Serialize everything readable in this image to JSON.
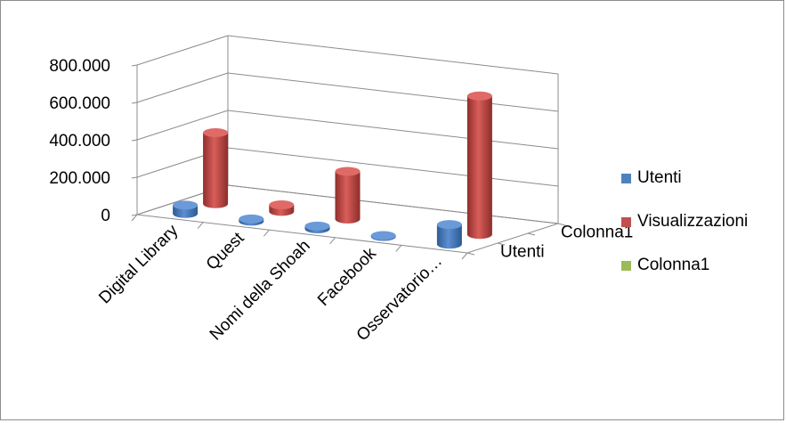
{
  "chart_data": {
    "type": "bar",
    "variant": "3d-cylinder",
    "categories": [
      "Digital Library",
      "Quest",
      "Nomi della Shoah",
      "Facebook",
      "Osservatorio…"
    ],
    "series": [
      {
        "name": "Utenti",
        "values": [
          45000,
          12000,
          15000,
          5000,
          105000
        ],
        "color": "#4f81bd"
      },
      {
        "name": "Visualizzazioni",
        "values": [
          380000,
          35000,
          255000,
          0,
          740000
        ],
        "color": "#c0504d"
      },
      {
        "name": "Colonna1",
        "values": [
          0,
          0,
          0,
          0,
          0
        ],
        "color": "#9bbb59"
      }
    ],
    "depth_labels": [
      "Utenti",
      "Colonna1"
    ],
    "y_ticks": [
      "0",
      "200.000",
      "400.000",
      "600.000",
      "800.000"
    ],
    "ylim": [
      0,
      800000
    ],
    "grid": true,
    "legend_position": "right"
  }
}
